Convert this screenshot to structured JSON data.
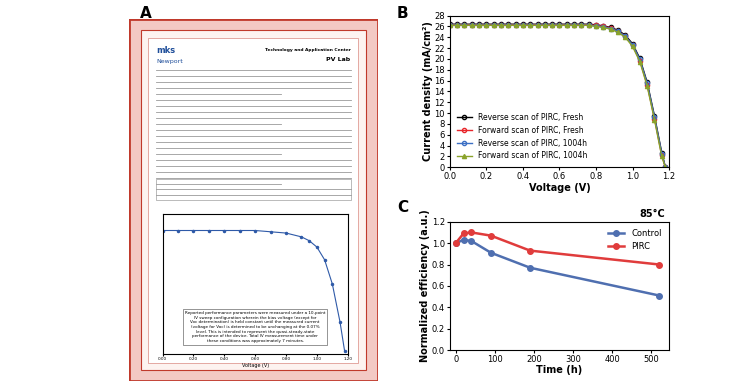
{
  "panels": [
    "A",
    "B",
    "C"
  ],
  "certificate": {
    "header_left": [
      "mks",
      "Newport"
    ],
    "header_right": [
      "Technology and Application Center",
      "PV Lab"
    ],
    "note": "Reported performance parameters were measured under a 10-point IV sweep configuration wherein the bias voltage (except for Voc determination) is held constant until the measured current (voltage for Voc) is determined to be unchanging at the 0.07% level. This is intended to represent the quasi-steady-state performance of the device. Total IV measurement time under these conditions was approximately 7 minutes.",
    "iv_plot": {
      "type": "line",
      "x_label": "Voltage (V)",
      "color": "#2f5aa8",
      "marker": "o",
      "x": [
        0,
        0.1,
        0.2,
        0.3,
        0.4,
        0.5,
        0.6,
        0.7,
        0.8,
        0.9,
        0.95,
        1.0,
        1.05,
        1.1,
        1.15,
        1.18
      ],
      "values": [
        0.97,
        0.97,
        0.97,
        0.97,
        0.97,
        0.97,
        0.97,
        0.96,
        0.95,
        0.92,
        0.89,
        0.84,
        0.74,
        0.55,
        0.25,
        0.02
      ],
      "xlim": [
        0,
        1.2
      ],
      "ylim": [
        0,
        1.1
      ],
      "xticks": [
        {
          "value": 0,
          "label": "0.00"
        },
        {
          "value": 0.2,
          "label": "0.20"
        },
        {
          "value": 0.4,
          "label": "0.40"
        },
        {
          "value": 0.6,
          "label": "0.60"
        },
        {
          "value": 0.8,
          "label": "0.80"
        },
        {
          "value": 1.0,
          "label": "1.00"
        },
        {
          "value": 1.2,
          "label": "1.20"
        }
      ],
      "tick_labels": "x"
    }
  },
  "chart_data": [
    {
      "type": "line",
      "x_label": "Voltage (V)",
      "y_label": "Current density (mA/cm²)",
      "x": [
        0,
        0.04,
        0.08,
        0.12,
        0.16,
        0.2,
        0.24,
        0.28,
        0.32,
        0.36,
        0.4,
        0.44,
        0.48,
        0.52,
        0.56,
        0.6,
        0.64,
        0.68,
        0.72,
        0.76,
        0.8,
        0.84,
        0.88,
        0.92,
        0.96,
        1.0,
        1.04,
        1.08,
        1.12,
        1.16,
        1.18
      ],
      "series": [
        {
          "name": "Reverse scan of PIRC, Fresh",
          "color": "#000000",
          "marker": "o",
          "values": [
            26.4,
            26.4,
            26.4,
            26.4,
            26.4,
            26.4,
            26.4,
            26.4,
            26.4,
            26.4,
            26.4,
            26.4,
            26.4,
            26.4,
            26.4,
            26.4,
            26.4,
            26.4,
            26.4,
            26.4,
            26.3,
            26.1,
            25.8,
            25.3,
            24.4,
            22.8,
            20.1,
            15.7,
            9.5,
            2.7,
            0.0
          ]
        },
        {
          "name": "Forward scan of PIRC, Fresh",
          "color": "#e8262b",
          "marker": "o",
          "values": [
            26.3,
            26.3,
            26.3,
            26.3,
            26.3,
            26.3,
            26.3,
            26.3,
            26.3,
            26.3,
            26.3,
            26.3,
            26.3,
            26.3,
            26.3,
            26.3,
            26.3,
            26.3,
            26.3,
            26.3,
            26.2,
            26.0,
            25.7,
            25.1,
            24.2,
            22.5,
            19.7,
            15.2,
            9.0,
            2.2,
            0.0
          ]
        },
        {
          "name": "Reverse scan of PIRC, 1004h",
          "color": "#3b6fc4",
          "marker": "o",
          "values": [
            26.2,
            26.2,
            26.2,
            26.2,
            26.2,
            26.2,
            26.2,
            26.2,
            26.2,
            26.2,
            26.2,
            26.2,
            26.2,
            26.2,
            26.2,
            26.2,
            26.2,
            26.2,
            26.2,
            26.2,
            26.1,
            25.9,
            25.6,
            25.1,
            24.2,
            22.6,
            19.9,
            15.5,
            9.3,
            2.5,
            0.0
          ]
        },
        {
          "name": "Forward scan of PIRC, 1004h",
          "color": "#8aa32b",
          "marker": "^",
          "values": [
            26.2,
            26.2,
            26.2,
            26.2,
            26.2,
            26.2,
            26.2,
            26.2,
            26.2,
            26.2,
            26.2,
            26.2,
            26.2,
            26.2,
            26.2,
            26.2,
            26.2,
            26.2,
            26.2,
            26.2,
            26.0,
            25.8,
            25.5,
            24.9,
            24.0,
            22.3,
            19.5,
            15.0,
            8.8,
            2.0,
            0.0
          ]
        }
      ],
      "xlim": [
        0,
        1.2
      ],
      "xticks": [
        {
          "value": 0,
          "label": "0.0"
        },
        0.2,
        0.4,
        0.6,
        0.8,
        {
          "value": 1.0,
          "label": "1.0"
        },
        1.2
      ],
      "ylim": [
        0,
        28
      ],
      "yticks": [
        0,
        2,
        4,
        6,
        8,
        10,
        12,
        14,
        16,
        18,
        20,
        22,
        24,
        26,
        28
      ],
      "legend": "lower left"
    },
    {
      "type": "line",
      "x_label": "Time (h)",
      "y_label": "Normalized efficiency (a.u.)",
      "annotation": "85°C",
      "series": [
        {
          "name": "Control",
          "color": "#4f6fb0",
          "marker": "o",
          "x": [
            0,
            20,
            40,
            90,
            190,
            520
          ],
          "values": [
            1.0,
            1.03,
            1.02,
            0.91,
            0.77,
            0.51
          ]
        },
        {
          "name": "PIRC",
          "color": "#e03c3c",
          "marker": "o",
          "x": [
            0,
            20,
            40,
            90,
            190,
            520
          ],
          "values": [
            1.0,
            1.09,
            1.1,
            1.07,
            0.93,
            0.8
          ]
        }
      ],
      "xlim": [
        -15,
        545
      ],
      "xticks": [
        0,
        100,
        200,
        300,
        400,
        500
      ],
      "ylim": [
        0,
        1.2
      ],
      "yticks": [
        {
          "value": 0,
          "label": "0.0"
        },
        0.2,
        0.4,
        0.6,
        0.8,
        {
          "value": 1.0,
          "label": "1.0"
        },
        1.2
      ],
      "legend": "upper right"
    }
  ]
}
